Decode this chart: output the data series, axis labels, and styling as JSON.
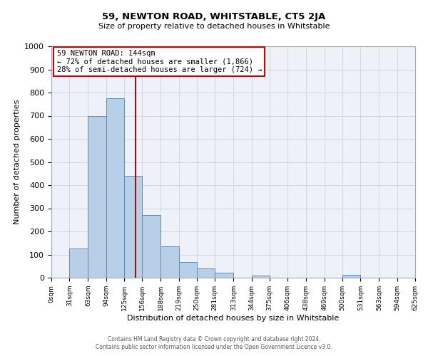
{
  "title": "59, NEWTON ROAD, WHITSTABLE, CT5 2JA",
  "subtitle": "Size of property relative to detached houses in Whitstable",
  "xlabel": "Distribution of detached houses by size in Whitstable",
  "ylabel": "Number of detached properties",
  "bin_edges": [
    0,
    31,
    63,
    94,
    125,
    156,
    188,
    219,
    250,
    281,
    313,
    344,
    375,
    406,
    438,
    469,
    500,
    531,
    563,
    594,
    625
  ],
  "bar_heights": [
    0,
    125,
    700,
    775,
    440,
    270,
    135,
    68,
    40,
    22,
    0,
    8,
    0,
    0,
    0,
    0,
    12,
    0,
    0,
    0
  ],
  "bar_color": "#b8cfe8",
  "bar_edge_color": "#5b8db8",
  "vline_x": 144,
  "vline_color": "#9b1010",
  "ylim": [
    0,
    1000
  ],
  "yticks": [
    0,
    100,
    200,
    300,
    400,
    500,
    600,
    700,
    800,
    900,
    1000
  ],
  "x_labels": [
    "0sqm",
    "31sqm",
    "63sqm",
    "94sqm",
    "125sqm",
    "156sqm",
    "188sqm",
    "219sqm",
    "250sqm",
    "281sqm",
    "313sqm",
    "344sqm",
    "375sqm",
    "406sqm",
    "438sqm",
    "469sqm",
    "500sqm",
    "531sqm",
    "563sqm",
    "594sqm",
    "625sqm"
  ],
  "annotation_title": "59 NEWTON ROAD: 144sqm",
  "annotation_line1": "← 72% of detached houses are smaller (1,866)",
  "annotation_line2": "28% of semi-detached houses are larger (724) →",
  "annotation_box_color": "#ffffff",
  "annotation_box_edge": "#cc0000",
  "grid_color": "#d0d8e8",
  "bg_color": "#eef2f8",
  "fig_bg_color": "#ffffff",
  "footnote1": "Contains HM Land Registry data © Crown copyright and database right 2024.",
  "footnote2": "Contains public sector information licensed under the Open Government Licence v3.0."
}
